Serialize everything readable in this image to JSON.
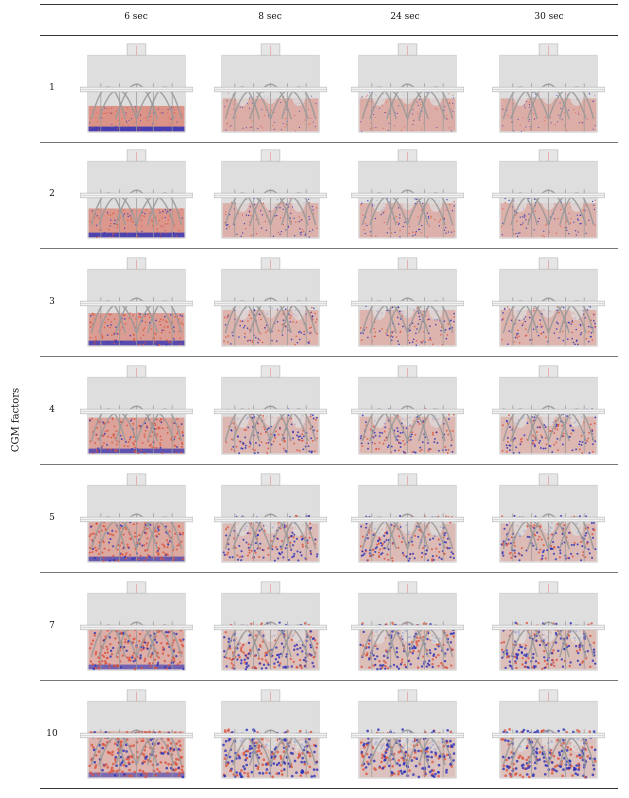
{
  "table": {
    "y_axis_label": "CGM factors",
    "columns": [
      "6 sec",
      "8 sec",
      "24 sec",
      "30 sec"
    ],
    "rows": [
      "1",
      "2",
      "3",
      "4",
      "5",
      "7",
      "10"
    ]
  },
  "colors": {
    "particle_red": "#d9533f",
    "particle_blue": "#2b2fb8",
    "vessel_fill": "#dedede",
    "structure_stroke": "#9a9a9a",
    "rule": "#333333"
  }
}
